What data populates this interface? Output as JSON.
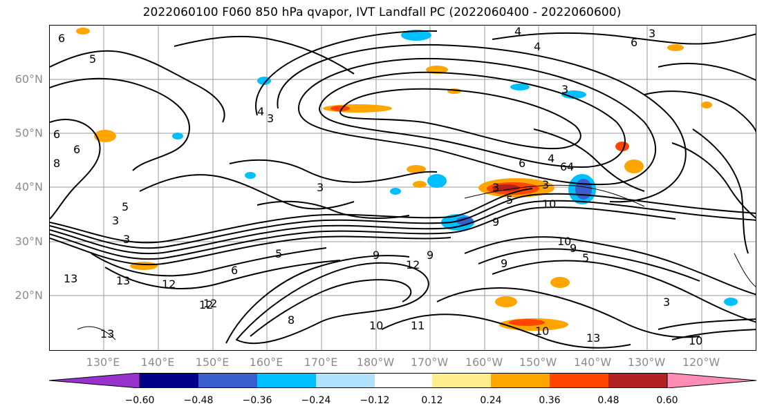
{
  "title": "2022060100 F060 850 hPa qvapor, IVT Landfall PC (2022060400 - 2022060600)",
  "lat_labels": [
    "60°N",
    "50°N",
    "40°N",
    "30°N",
    "20°N"
  ],
  "lon_labels": [
    "130°E",
    "140°E",
    "150°E",
    "160°E",
    "170°E",
    "180°W",
    "170°W",
    "160°W",
    "150°W",
    "140°W",
    "130°W",
    "120°W"
  ],
  "colorbar": {
    "ticks": [
      "−0.60",
      "−0.48",
      "−0.36",
      "−0.24",
      "−0.12",
      "0.12",
      "0.24",
      "0.36",
      "0.48",
      "0.60"
    ],
    "colors": [
      "#9932cc",
      "#00008b",
      "#3a5fcd",
      "#00bfff",
      "#b0e2ff",
      "#ffffff",
      "#ffec8b",
      "#ffa500",
      "#ff4500",
      "#b22222",
      "#ff8cb4"
    ]
  },
  "contour_labels": [
    "6",
    "5",
    "6",
    "6",
    "8",
    "5",
    "3",
    "4",
    "3",
    "6",
    "3",
    "3",
    "4",
    "4",
    "3",
    "3",
    "5",
    "6",
    "4",
    "6",
    "4",
    "3",
    "10",
    "9",
    "10",
    "9",
    "9",
    "5",
    "12",
    "13",
    "13",
    "12",
    "12",
    "11",
    "10",
    "10",
    "13",
    "3",
    "10",
    "13",
    "6",
    "9",
    "5",
    "9",
    "12",
    "3",
    "8"
  ]
}
